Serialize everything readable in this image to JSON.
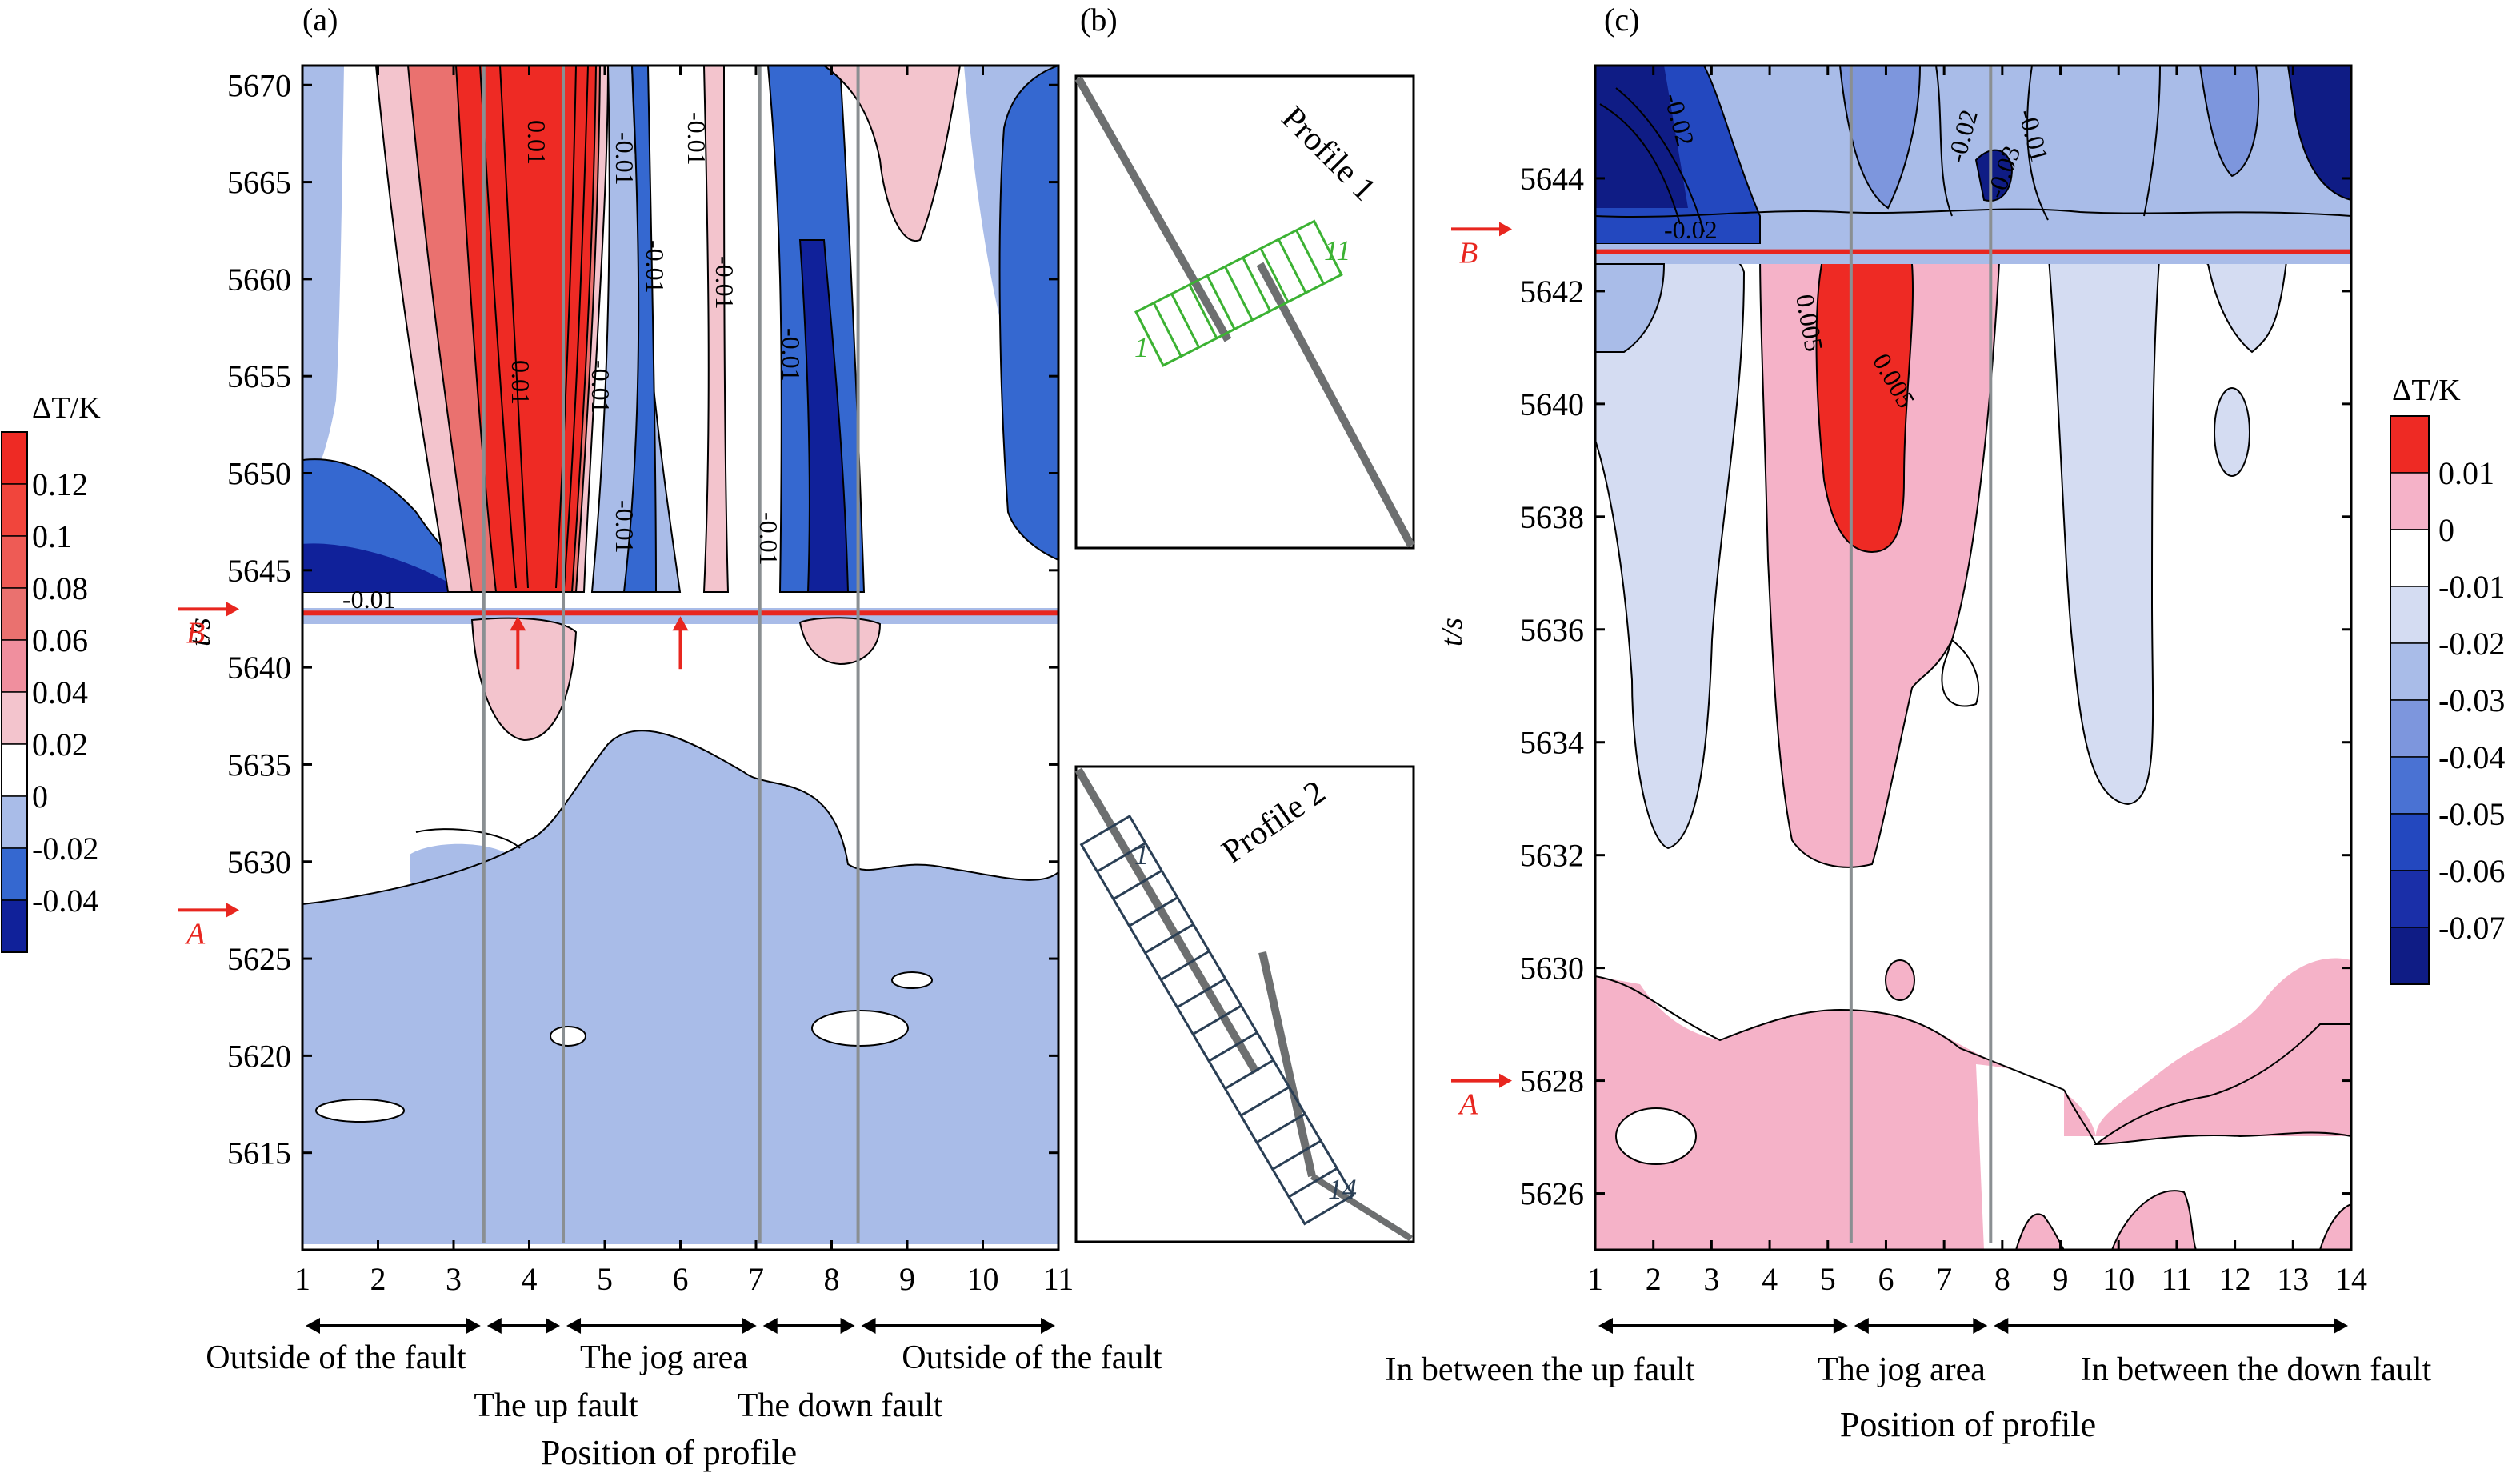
{
  "panel_labels": {
    "a": "(a)",
    "b": "(b)",
    "c": "(c)"
  },
  "colors": {
    "red_line": "#e8261f",
    "vertical_line": "#8a8f92",
    "profile1_box": "#3cb233",
    "profile2_box": "#2a3f55",
    "fault_line": "#6d6f70"
  },
  "chart_data": [
    {
      "id": "a",
      "type": "heatmap",
      "ylabel": "t/s",
      "xlabel": "Position of profile",
      "xlim": [
        1,
        11
      ],
      "ylim": [
        5610,
        5671
      ],
      "xticks": [
        1,
        2,
        3,
        4,
        5,
        6,
        7,
        8,
        9,
        10,
        11
      ],
      "yticks": [
        5615,
        5620,
        5625,
        5630,
        5635,
        5640,
        5645,
        5650,
        5655,
        5660,
        5665,
        5670
      ],
      "colorbar": {
        "title": "ΔT/K",
        "levels": [
          "0.12",
          "0.1",
          "0.08",
          "0.06",
          "0.04",
          "0.02",
          "0",
          "-0.02",
          "-0.04"
        ],
        "colors": [
          "#ee2a24",
          "#f1453c",
          "#ee5b55",
          "#ea716f",
          "#f08f9e",
          "#f3c4cd",
          "#ffffff",
          "#a9bce8",
          "#3568d0",
          "#10219a"
        ]
      },
      "vertical_lines": [
        3.4,
        4.45,
        7.05,
        8.35
      ],
      "event_line": 5642.8,
      "markers": [
        {
          "label": "B",
          "y": 5643
        },
        {
          "label": "A",
          "y": 5627.5
        }
      ],
      "up_arrows": [
        3.85,
        6.0
      ],
      "contour_labels": [
        "-0.01",
        "0.01",
        "0.01",
        "-0.01",
        "-0.01",
        "-0.01",
        "-0.01",
        "-0.01",
        "-0.01",
        "-0.01",
        "-0.01"
      ],
      "region_labels": [
        "Outside of the fault",
        "The up fault",
        "The jog area",
        "The down fault",
        "Outside of the fault"
      ],
      "region_brackets": [
        [
          1,
          3.4
        ],
        [
          3.4,
          4.45
        ],
        [
          4.45,
          7.05
        ],
        [
          7.05,
          8.35
        ],
        [
          8.35,
          11
        ]
      ]
    },
    {
      "id": "b",
      "type": "diagram",
      "insets": [
        {
          "title": "Profile 1",
          "start_label": "1",
          "end_label": "11"
        },
        {
          "title": "Profile 2",
          "start_label": "1",
          "end_label": "14"
        }
      ]
    },
    {
      "id": "c",
      "type": "heatmap",
      "ylabel": "t/s",
      "xlabel": "Position of profile",
      "xlim": [
        1,
        14
      ],
      "ylim": [
        5625,
        5646
      ],
      "xticks": [
        1,
        2,
        3,
        4,
        5,
        6,
        7,
        8,
        9,
        10,
        11,
        12,
        13,
        14
      ],
      "yticks": [
        5626,
        5628,
        5630,
        5632,
        5634,
        5636,
        5638,
        5640,
        5642,
        5644
      ],
      "colorbar": {
        "title": "ΔT/K",
        "levels": [
          "0.01",
          "0",
          "-0.01",
          "-0.02",
          "-0.03",
          "-0.04",
          "-0.05",
          "-0.06",
          "-0.07"
        ],
        "colors": [
          "#ee2a24",
          "#f5b2c8",
          "#ffffff",
          "#d4dcf2",
          "#a9bce8",
          "#7d96dd",
          "#4a72d3",
          "#2348bf",
          "#1a2fa8",
          "#0f1c85"
        ]
      },
      "vertical_lines": [
        5.4,
        7.8
      ],
      "event_line": 5642.7,
      "markers": [
        {
          "label": "B",
          "y": 5643.1
        },
        {
          "label": "A",
          "y": 5628
        }
      ],
      "contour_labels": [
        "-0.02",
        "-0.02",
        "-0.02",
        "-0.01",
        "-0.03",
        "0.005",
        "0.005"
      ],
      "region_labels": [
        "In between the up fault",
        "The jog area",
        "In between the down fault"
      ],
      "region_brackets": [
        [
          1,
          5.4
        ],
        [
          5.4,
          7.8
        ],
        [
          7.8,
          14
        ]
      ]
    }
  ]
}
